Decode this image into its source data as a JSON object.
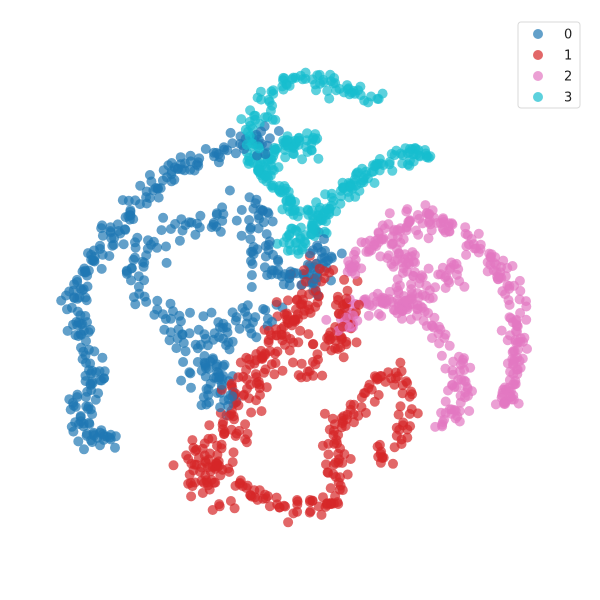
{
  "chart_data": {
    "type": "scatter",
    "title": "",
    "xlabel": "",
    "ylabel": "",
    "axes_visible": false,
    "grid": false,
    "xlim": [
      -100,
      100
    ],
    "ylim": [
      -100,
      100
    ],
    "legend_placement": "top-right",
    "marker_alpha": 0.7,
    "series": [
      {
        "name": "0",
        "color": "#1f77b4",
        "clusters": [
          {
            "path": [
              [
                -10,
                62
              ],
              [
                -25,
                60
              ],
              [
                -45,
                52
              ],
              [
                -60,
                40
              ],
              [
                -72,
                25
              ],
              [
                -82,
                10
              ],
              [
                -86,
                -5
              ],
              [
                -82,
                -20
              ],
              [
                -78,
                -32
              ],
              [
                -86,
                -42
              ],
              [
                -82,
                -52
              ],
              [
                -70,
                -55
              ]
            ],
            "count": 230,
            "spread": 4
          },
          {
            "path": [
              [
                -20,
                40
              ],
              [
                -35,
                30
              ],
              [
                -55,
                25
              ],
              [
                -65,
                15
              ],
              [
                -58,
                0
              ],
              [
                -45,
                -15
              ],
              [
                -30,
                -28
              ],
              [
                -28,
                -40
              ]
            ],
            "count": 110,
            "spread": 5
          },
          {
            "path": [
              [
                -12,
                34
              ],
              [
                -18,
                22
              ],
              [
                -10,
                10
              ],
              [
                -2,
                5
              ],
              [
                5,
                12
              ],
              [
                10,
                20
              ],
              [
                6,
                6
              ]
            ],
            "count": 90,
            "spread": 5
          },
          {
            "path": [
              [
                -8,
                -2
              ],
              [
                -15,
                -10
              ],
              [
                -25,
                -5
              ],
              [
                -35,
                -15
              ],
              [
                -38,
                -30
              ],
              [
                -32,
                -36
              ]
            ],
            "count": 70,
            "spread": 6
          }
        ]
      },
      {
        "name": "1",
        "color": "#d62728",
        "clusters": [
          {
            "path": [
              [
                8,
                12
              ],
              [
                3,
                4
              ],
              [
                -2,
                -5
              ],
              [
                -8,
                -15
              ],
              [
                -15,
                -25
              ],
              [
                -22,
                -35
              ],
              [
                -25,
                -50
              ],
              [
                -32,
                -58
              ],
              [
                -40,
                -66
              ],
              [
                -38,
                -74
              ]
            ],
            "count": 210,
            "spread": 7
          },
          {
            "path": [
              [
                -25,
                -70
              ],
              [
                -15,
                -76
              ],
              [
                -5,
                -80
              ],
              [
                5,
                -82
              ],
              [
                12,
                -76
              ],
              [
                15,
                -66
              ],
              [
                12,
                -52
              ],
              [
                20,
                -42
              ],
              [
                28,
                -32
              ],
              [
                38,
                -28
              ],
              [
                42,
                -40
              ],
              [
                38,
                -55
              ],
              [
                30,
                -62
              ]
            ],
            "count": 160,
            "spread": 4
          },
          {
            "path": [
              [
                2,
                -30
              ],
              [
                10,
                -20
              ],
              [
                18,
                -15
              ],
              [
                15,
                -5
              ],
              [
                20,
                5
              ]
            ],
            "count": 60,
            "spread": 5
          }
        ]
      },
      {
        "name": "2",
        "color": "#e377c2",
        "clusters": [
          {
            "path": [
              [
                18,
                10
              ],
              [
                28,
                22
              ],
              [
                40,
                30
              ],
              [
                55,
                30
              ],
              [
                68,
                22
              ],
              [
                78,
                10
              ],
              [
                84,
                -5
              ],
              [
                84,
                -20
              ],
              [
                80,
                -35
              ],
              [
                78,
                -42
              ]
            ],
            "count": 200,
            "spread": 4
          },
          {
            "path": [
              [
                16,
                -12
              ],
              [
                22,
                -2
              ],
              [
                32,
                0
              ],
              [
                45,
                -5
              ],
              [
                55,
                -15
              ],
              [
                62,
                -28
              ],
              [
                60,
                -40
              ],
              [
                55,
                -48
              ]
            ],
            "count": 140,
            "spread": 4
          },
          {
            "path": [
              [
                35,
                25
              ],
              [
                42,
                10
              ],
              [
                45,
                0
              ],
              [
                55,
                8
              ],
              [
                62,
                15
              ]
            ],
            "count": 80,
            "spread": 5
          }
        ]
      },
      {
        "name": "3",
        "color": "#17becf",
        "clusters": [
          {
            "path": [
              [
                -5,
                20
              ],
              [
                0,
                32
              ],
              [
                -8,
                45
              ],
              [
                -18,
                55
              ],
              [
                -18,
                68
              ],
              [
                -10,
                80
              ],
              [
                -5,
                86
              ],
              [
                8,
                84
              ],
              [
                22,
                80
              ],
              [
                32,
                80
              ]
            ],
            "count": 150,
            "spread": 3.5
          },
          {
            "path": [
              [
                -2,
                18
              ],
              [
                5,
                28
              ],
              [
                12,
                38
              ],
              [
                22,
                45
              ],
              [
                32,
                52
              ],
              [
                42,
                56
              ],
              [
                48,
                58
              ]
            ],
            "count": 130,
            "spread": 3.5
          },
          {
            "path": [
              [
                -15,
                50
              ],
              [
                -8,
                58
              ],
              [
                0,
                62
              ],
              [
                5,
                55
              ]
            ],
            "count": 60,
            "spread": 4
          }
        ]
      }
    ]
  },
  "legend": {
    "items": [
      {
        "label": "0",
        "color": "#1f77b4"
      },
      {
        "label": "1",
        "color": "#d62728"
      },
      {
        "label": "2",
        "color": "#e377c2"
      },
      {
        "label": "3",
        "color": "#17becf"
      }
    ]
  }
}
